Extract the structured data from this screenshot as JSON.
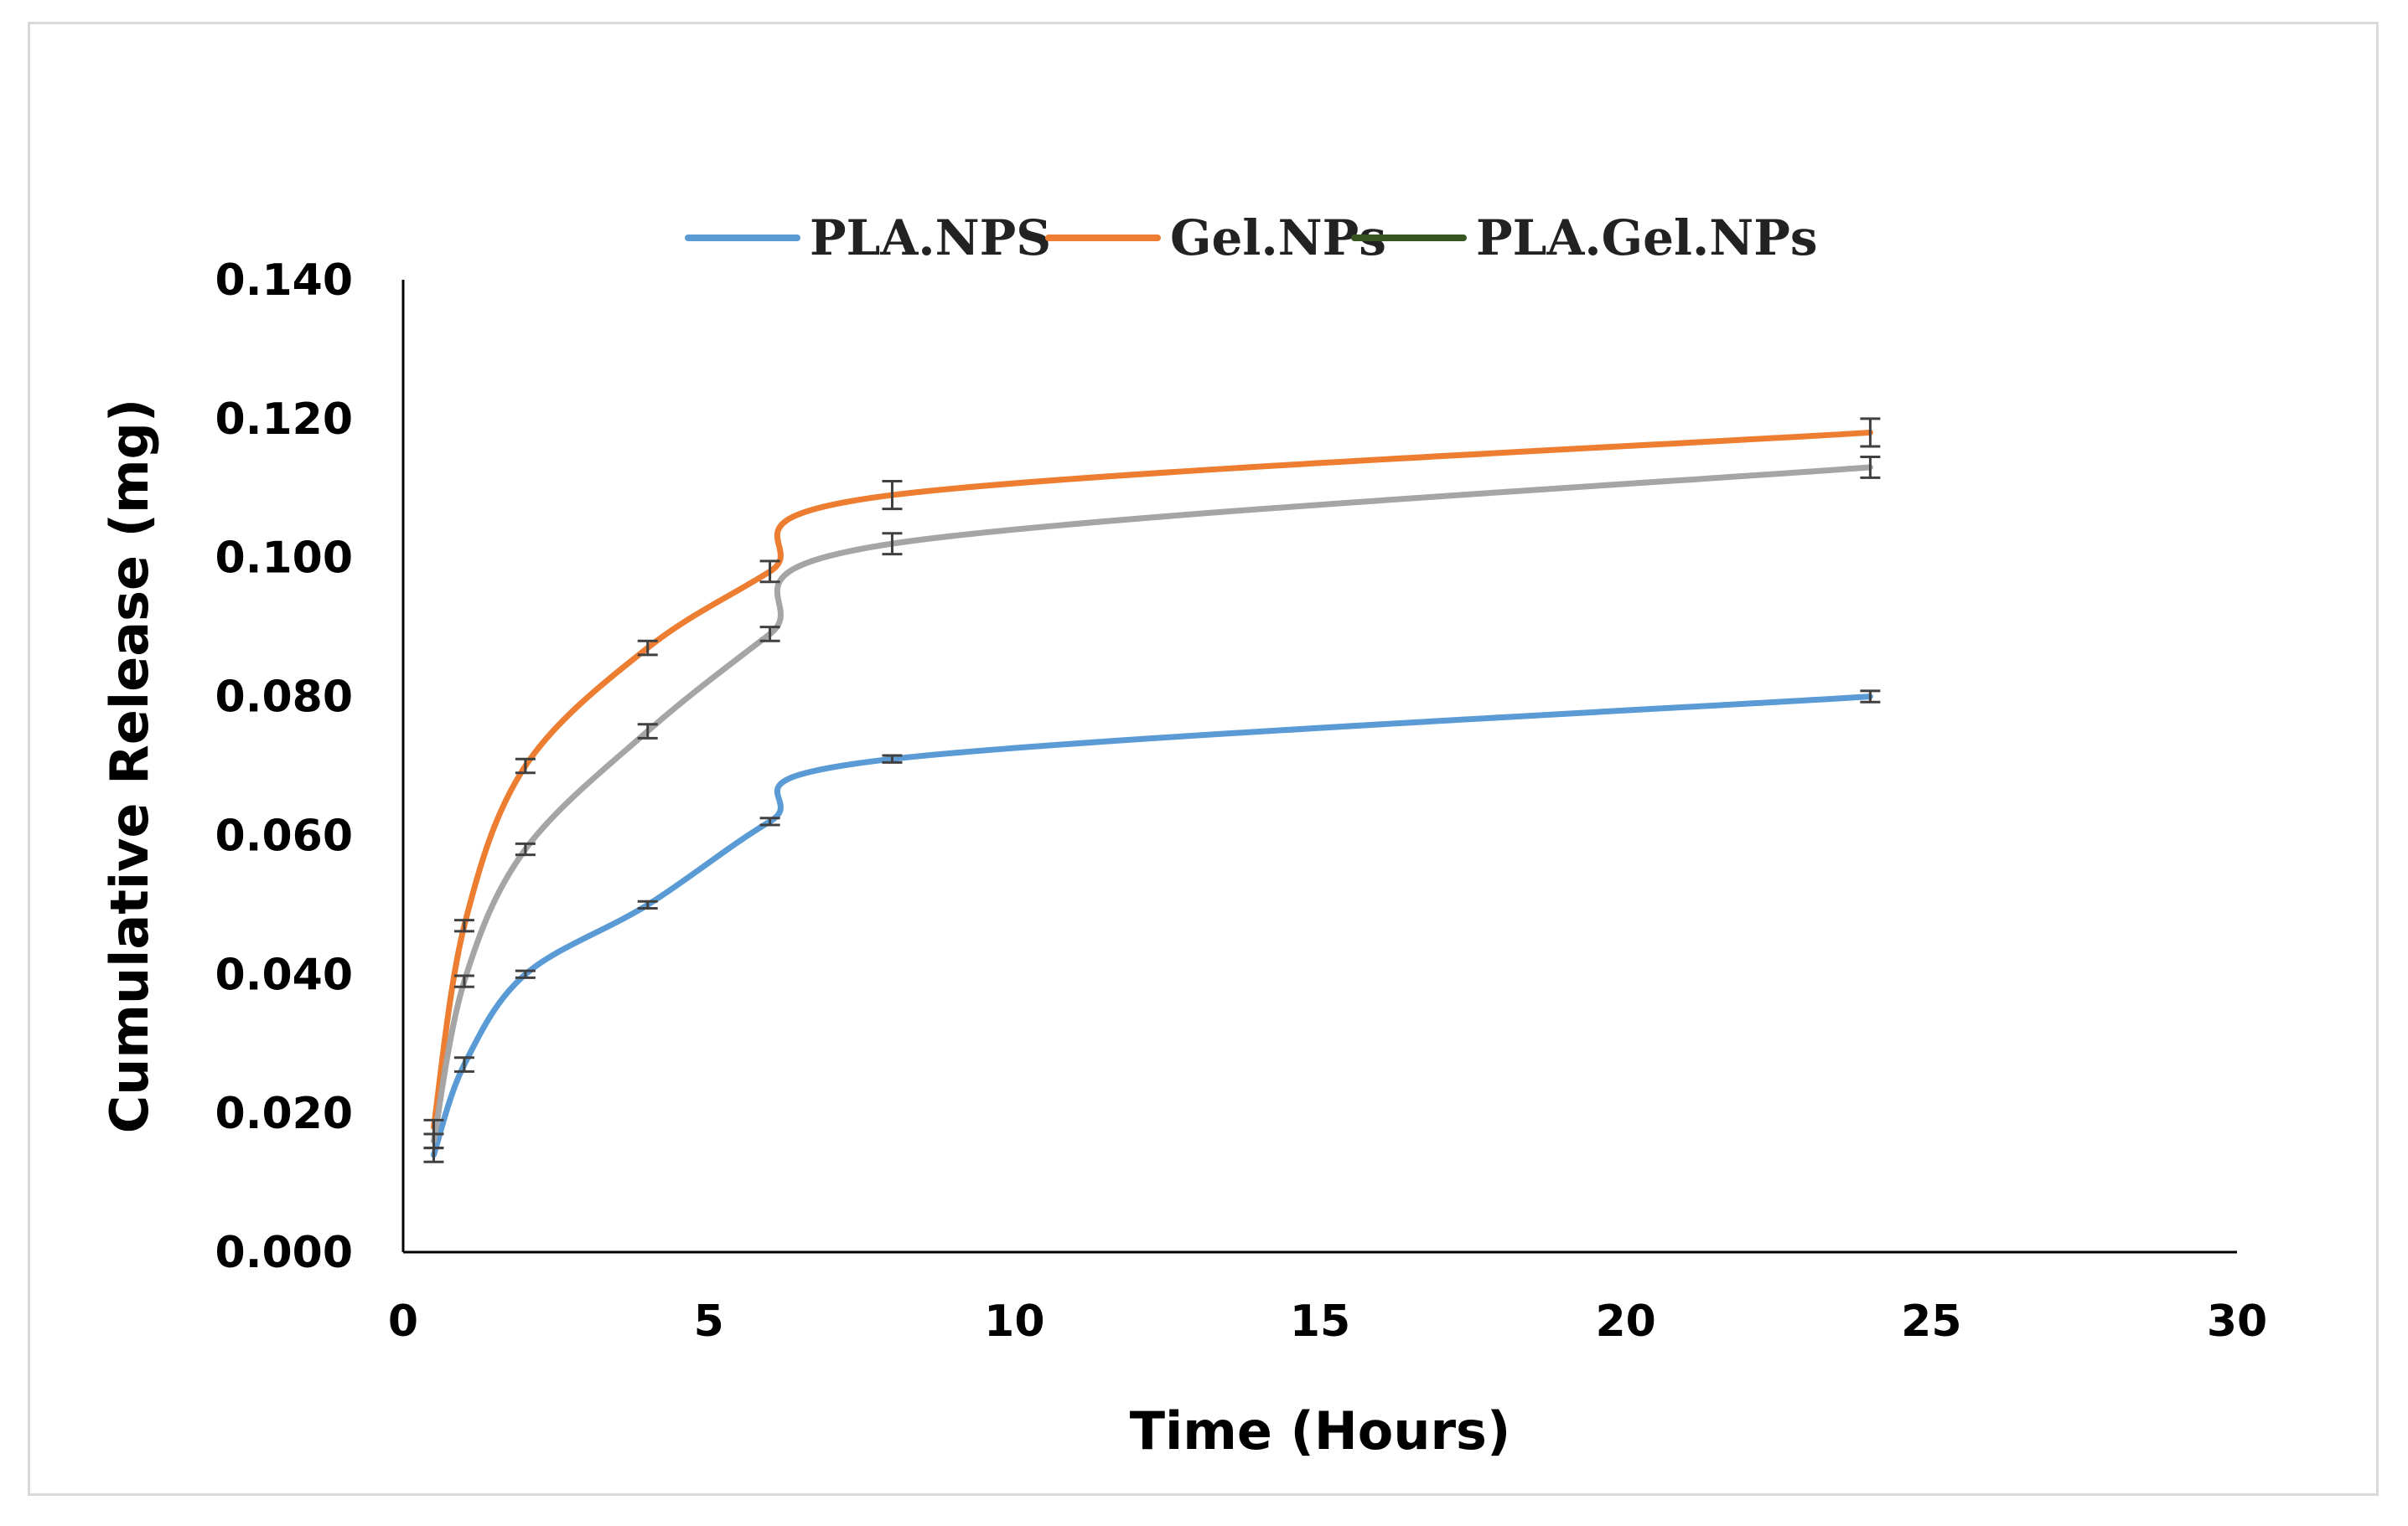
{
  "chart_data": {
    "type": "line",
    "title": "",
    "xlabel": "Time (Hours)",
    "ylabel": "Cumulative Release (mg)",
    "xlim": [
      0,
      30
    ],
    "ylim": [
      0,
      0.14
    ],
    "x_ticks": [
      "0",
      "5",
      "10",
      "15",
      "20",
      "25",
      "30"
    ],
    "y_ticks": [
      "0.000",
      "0.020",
      "0.040",
      "0.060",
      "0.080",
      "0.100",
      "0.120",
      "0.140"
    ],
    "grid": false,
    "legend_position": "top",
    "error_bars": true,
    "x": [
      0.5,
      1,
      2,
      4,
      6,
      8,
      24
    ],
    "series": [
      {
        "name": "PLA.NPS",
        "color": "#5b9bd5",
        "values": [
          0.014,
          0.027,
          0.04,
          0.05,
          0.062,
          0.071,
          0.08
        ],
        "errors": [
          0.001,
          0.001,
          0.0005,
          0.0005,
          0.0005,
          0.0005,
          0.0008
        ]
      },
      {
        "name": "Gel.NPs",
        "color": "#ed7d31",
        "values": [
          0.018,
          0.047,
          0.07,
          0.087,
          0.098,
          0.109,
          0.118
        ],
        "errors": [
          0.001,
          0.0008,
          0.001,
          0.001,
          0.0015,
          0.002,
          0.002
        ]
      },
      {
        "name": "PLA.Gel.NPs",
        "color": "#a5a5a5",
        "legend_color": "#375623",
        "values": [
          0.016,
          0.039,
          0.058,
          0.075,
          0.089,
          0.102,
          0.113
        ],
        "errors": [
          0.001,
          0.0008,
          0.0008,
          0.001,
          0.001,
          0.0015,
          0.0015
        ]
      }
    ]
  }
}
